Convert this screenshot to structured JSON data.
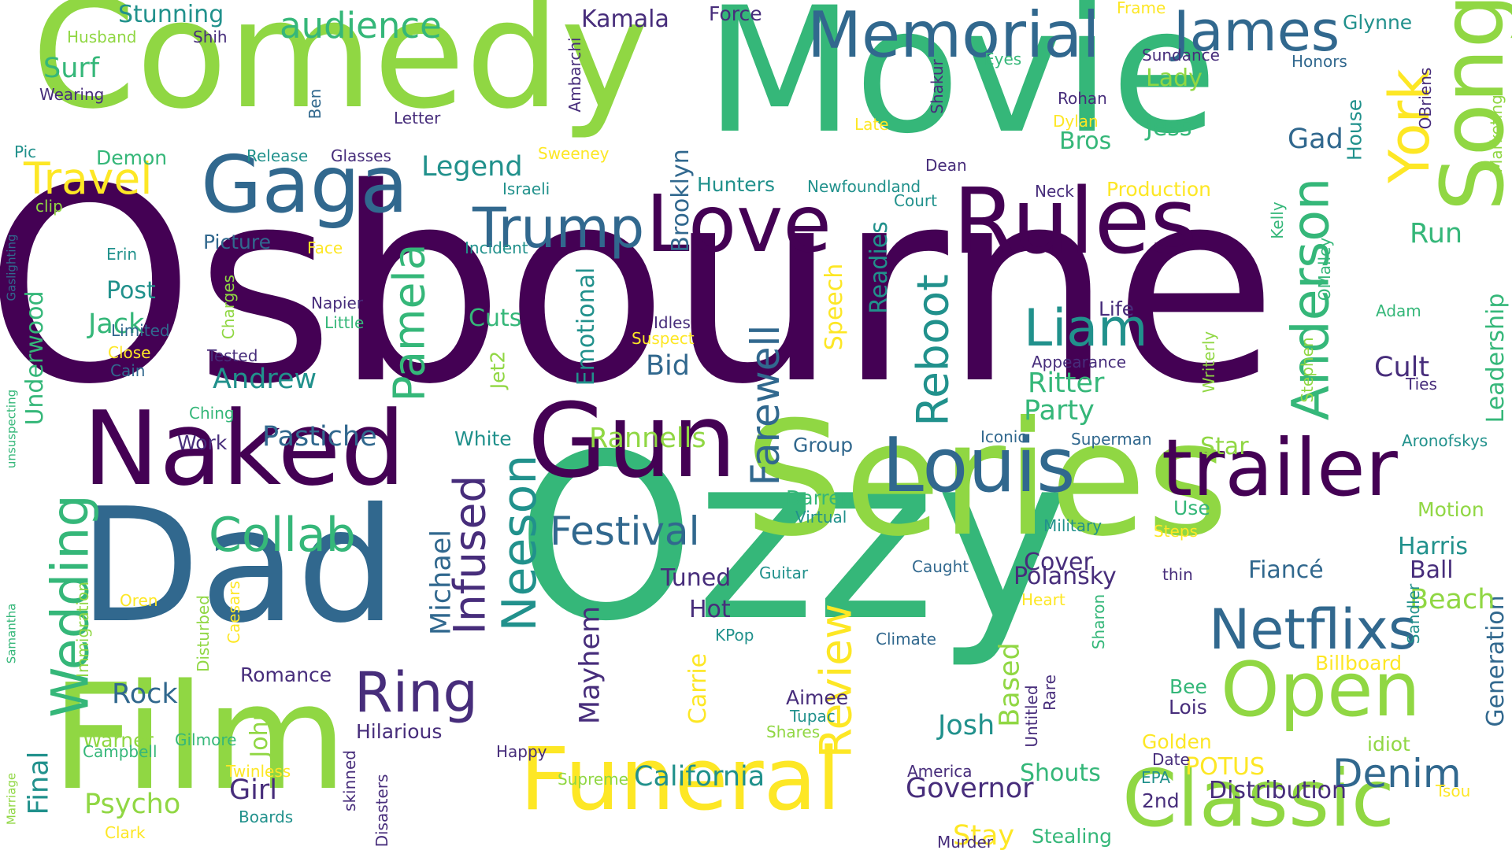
{
  "colors": {
    "background": "#ffffff",
    "palette": "viridis",
    "dark_purple": "#440154",
    "indigo": "#472d7b",
    "blue": "#31688e",
    "teal": "#21918c",
    "green": "#35b779",
    "light_green": "#90d743",
    "yellow": "#fde725"
  },
  "words": [
    "Osbourne",
    "Ozzy",
    "Movie",
    "Series",
    "Comedy",
    "Film",
    "Dad",
    "Naked",
    "Gun",
    "Funeral",
    "Classic",
    "Rules",
    "trailer",
    "Love",
    "Gaga",
    "Louis",
    "Song",
    "Open",
    "Netflixs",
    "Memorial",
    "James",
    "York",
    "Trump",
    "Ring",
    "Liam",
    "Anderson",
    "Collab",
    "Wedding",
    "Travel",
    "Festival",
    "Infused",
    "Neeson",
    "Pamela",
    "Reboot",
    "Review",
    "Farewell",
    "Denim",
    "Michael",
    "audience",
    "California",
    "Emotional",
    "Leadership",
    "Generation",
    "Legend",
    "Governor",
    "Speech",
    "Readies",
    "Final",
    "Mayhem",
    "Carrie",
    "Cover",
    "Fiancé",
    "Polansky",
    "Ritter",
    "Party",
    "Cult",
    "Run",
    "Gad",
    "Bros",
    "Jess",
    "Lady",
    "Andrew",
    "Pastiche",
    "Rannells",
    "Psycho",
    "Girl",
    "Stunning",
    "Kamala",
    "Force",
    "Glynne",
    "Surf",
    "Underwood",
    "Cuts",
    "Bid",
    "Brooklyn",
    "Hunters",
    "Newfoundland",
    "Production",
    "Josh",
    "Shouts",
    "Distribution",
    "Stay",
    "Harris",
    "Ball",
    "Beach",
    "Motion",
    "Billboard",
    "Golden",
    "POTUS",
    "Rock",
    "Warner",
    "Gilmore",
    "John",
    "Jack",
    "Post",
    "Picture",
    "Star",
    "Tuned",
    "Hot",
    "Group",
    "White",
    "Work",
    "Marketing",
    "Based",
    "Jet2",
    "Immigration",
    "Sharon",
    "Sandler",
    "Stephen",
    "Writerly",
    "Kelly",
    "OMalley",
    "OBriens",
    "House",
    "Aronofskys",
    "Ties",
    "Appearance",
    "Life",
    "Iconic",
    "Superman",
    "Darren",
    "Virtual",
    "Military",
    "Steps",
    "Use",
    "thin",
    "Caught",
    "Guitar",
    "Heart",
    "Climate",
    "KPop",
    "Aimee",
    "Tupac",
    "Shares",
    "Untitled",
    "Rare",
    "Bee",
    "Lois",
    "idiot",
    "Date",
    "EPA",
    "2nd",
    "Tsou",
    "Stealing",
    "Murder",
    "America",
    "Supreme",
    "Happy",
    "Disasters",
    "skinned",
    "Hilarious",
    "Romance",
    "Campbell",
    "Twinless",
    "Boards",
    "Clark",
    "Marriage",
    "Samantha",
    "Disturbed",
    "Caesars",
    "Oren",
    "unsuspecting",
    "Gaslighting",
    "clip",
    "Pic",
    "Husband",
    "Wearing",
    "Ben",
    "Letter",
    "Shih",
    "Ambarchi",
    "Frame",
    "Eyes",
    "Sundance",
    "Honors",
    "Shakur",
    "Rohan",
    "Dylan",
    "Late",
    "Dean",
    "Neck",
    "Court",
    "Face",
    "Incident",
    "Israeli",
    "Sweeney",
    "Release",
    "Glasses",
    "Demon",
    "Erin",
    "Limited",
    "Close",
    "Cain",
    "Tested",
    "Napier",
    "Little",
    "Charges",
    "Ching",
    "Idles",
    "Suspect",
    "Adam"
  ]
}
